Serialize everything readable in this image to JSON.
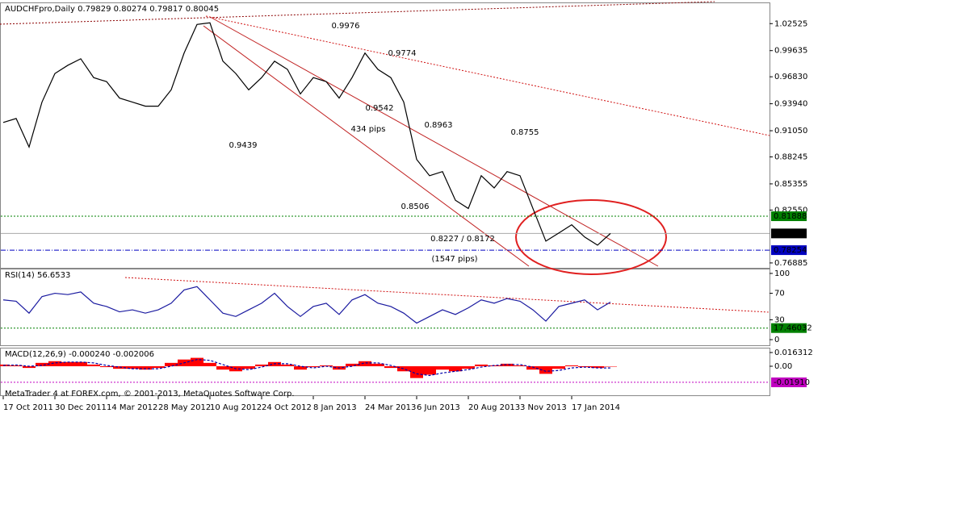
{
  "chart_data": [
    {
      "type": "line",
      "title": "AUDCHFpro,Daily 0.79829 0.80274 0.79817 0.80045",
      "color": "#000000",
      "categories": [
        "17 Oct 2011",
        null,
        null,
        null,
        "30 Dec 2011",
        null,
        null,
        null,
        "14 Mar 2012",
        null,
        null,
        null,
        "28 May 2012",
        null,
        null,
        null,
        "10 Aug 2012",
        null,
        null,
        null,
        "24 Oct 2012",
        null,
        null,
        null,
        "8 Jan 2013",
        null,
        null,
        null,
        "24 Mar 2013",
        null,
        null,
        null,
        "6 Jun 2013",
        null,
        null,
        null,
        "20 Aug 2013",
        null,
        null,
        null,
        "3 Nov 2013",
        null,
        null,
        null,
        "17 Jan 2014",
        null,
        null,
        null
      ],
      "values": [
        0.9193,
        0.9236,
        0.893,
        0.9412,
        0.9718,
        0.9806,
        0.9876,
        0.9674,
        0.9631,
        0.9455,
        0.9412,
        0.9368,
        0.9368,
        0.9543,
        0.9937,
        1.0244,
        1.0261,
        0.985,
        0.9718,
        0.9543,
        0.9674,
        0.985,
        0.9762,
        0.9499,
        0.9674,
        0.9631,
        0.9455,
        0.9674,
        0.9937,
        0.9762,
        0.9674,
        0.9412,
        0.8798,
        0.8623,
        0.8667,
        0.836,
        0.8272,
        0.8623,
        0.8492,
        0.8667,
        0.8623,
        0.8272,
        0.7922,
        0.8009,
        0.8097,
        0.7966,
        0.7879,
        0.80045
      ],
      "ylim": [
        0.7636,
        1.0471
      ],
      "yticks": [
        1.02525,
        0.99635,
        {
          "value": 0.9683,
          "label": "0.96830"
        },
        {
          "value": 0.9394,
          "label": "0.93940"
        },
        {
          "value": 0.9105,
          "label": "0.91050"
        },
        0.88245,
        0.85355,
        {
          "value": 0.8255,
          "label": "0.82550"
        },
        0.76885
      ],
      "levels": [
        {
          "value": 0.81888,
          "color": "#008000"
        },
        {
          "value": 0.80045,
          "color": "#000000"
        },
        {
          "value": 0.78254,
          "color": "#0000c0"
        }
      ],
      "annotations": [
        {
          "text": "0.9976",
          "color": "#2030c0"
        },
        {
          "text": "0.9774",
          "color": "#2030c0"
        },
        {
          "text": "0.9542",
          "color": "#2030c0"
        },
        {
          "text": "434  pips",
          "color": "#d02020"
        },
        {
          "text": "0.8963",
          "color": "#a01818"
        },
        {
          "text": "0.8755",
          "color": "#2030c0"
        },
        {
          "text": "0.9439",
          "color": "#a01818"
        },
        {
          "text": "0.8506",
          "color": "#a01818"
        },
        {
          "text": "0.8227 / 0.8172",
          "color": "#2030c0"
        },
        {
          "text": "(1547  pips)",
          "color": "#d02020"
        }
      ]
    },
    {
      "type": "line",
      "title": "RSI(14) 56.6533",
      "color": "#1a1aa0",
      "values": [
        60,
        58,
        40,
        65,
        70,
        68,
        72,
        55,
        50,
        42,
        45,
        40,
        45,
        55,
        75,
        80,
        60,
        40,
        35,
        45,
        55,
        70,
        50,
        35,
        50,
        55,
        38,
        60,
        68,
        55,
        50,
        40,
        25,
        35,
        45,
        38,
        48,
        60,
        55,
        62,
        58,
        45,
        28,
        50,
        55,
        60,
        45,
        56.6533
      ],
      "ylim": [
        -8.5,
        106
      ],
      "yticks": [
        100,
        70,
        30,
        0
      ],
      "levels": [
        {
          "value": 17.46032,
          "color": "#008000"
        }
      ]
    },
    {
      "type": "bar",
      "title": "MACD(12,26,9) -0.000240 -0.002006",
      "annotation": "MetaTrader 4 at FOREX.com, © 2001-2013, MetaQuotes Software Corp.",
      "series": [
        {
          "color": "#ff0000",
          "style": "histogram",
          "values": [
            0.002,
            0.001,
            -0.002,
            0.004,
            0.006,
            0.005,
            0.005,
            0.002,
            -0.001,
            -0.003,
            -0.003,
            -0.004,
            -0.002,
            0.004,
            0.008,
            0.01,
            0.004,
            -0.004,
            -0.006,
            -0.003,
            0.002,
            0.005,
            0.002,
            -0.004,
            -0.001,
            0.001,
            -0.004,
            0.003,
            0.006,
            0.003,
            -0.002,
            -0.006,
            -0.014,
            -0.01,
            -0.004,
            -0.006,
            -0.003,
            0.002,
            0.001,
            0.003,
            0.001,
            -0.004,
            -0.009,
            -0.003,
            0.001,
            -0.001,
            -0.002,
            -0.00024
          ]
        },
        {
          "color": "#0000aa",
          "style": "dashed",
          "values": [
            0.001,
            0.0015,
            0,
            0.001,
            0.004,
            0.005,
            0.005,
            0.004,
            0.001,
            -0.001,
            -0.003,
            -0.003,
            -0.003,
            0,
            0.004,
            0.008,
            0.007,
            0.002,
            -0.003,
            -0.004,
            -0.001,
            0.003,
            0.003,
            0,
            -0.002,
            0,
            -0.002,
            0,
            0.004,
            0.004,
            0.001,
            -0.003,
            -0.009,
            -0.011,
            -0.008,
            -0.006,
            -0.004,
            -0.001,
            0.001,
            0.002,
            0.002,
            -0.001,
            -0.006,
            -0.005,
            -0.002,
            -0.001,
            -0.002,
            -0.002006
          ]
        }
      ],
      "ylim": [
        -0.0345,
        0.0211
      ],
      "yticks": [
        0.016312,
        {
          "value": 0,
          "label": "0.00"
        }
      ],
      "levels": [
        {
          "value": -0.0191,
          "label": "-0.01910",
          "color": "#c000c0"
        }
      ]
    }
  ]
}
